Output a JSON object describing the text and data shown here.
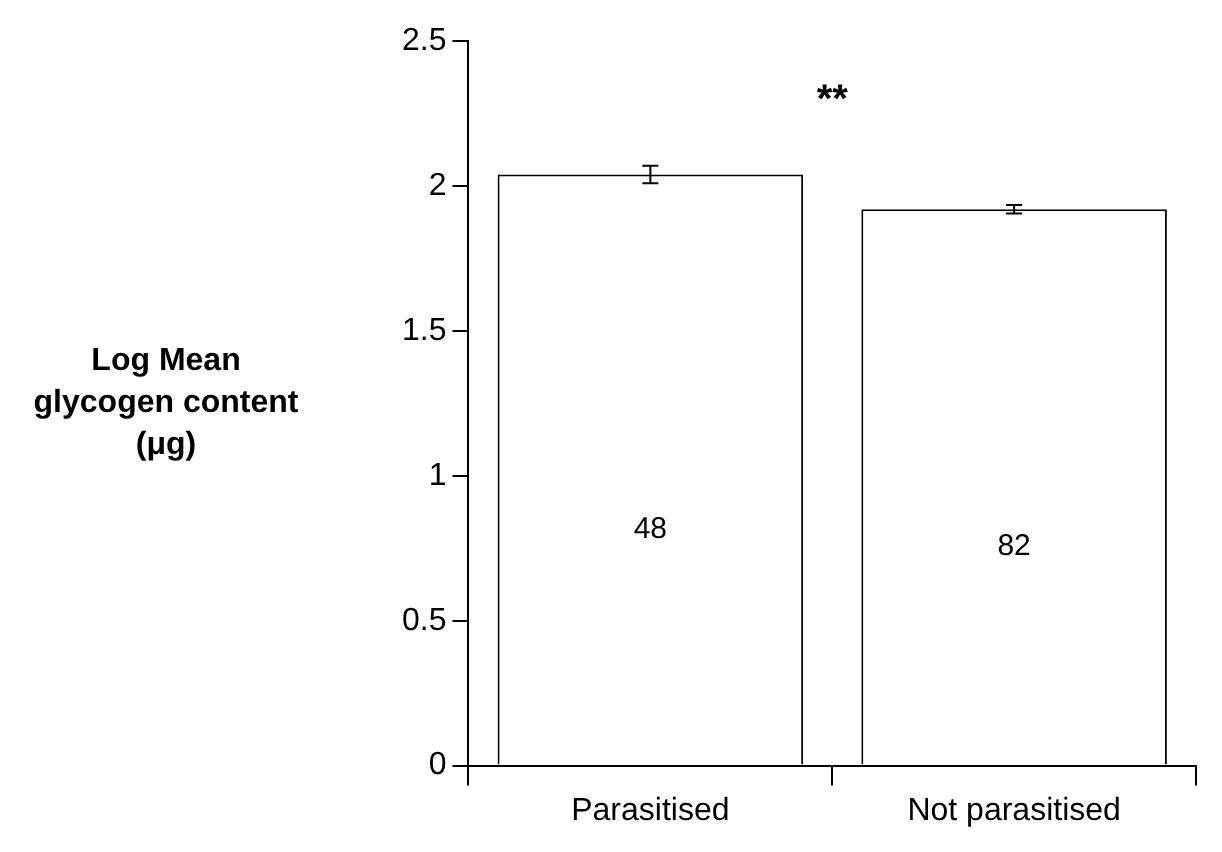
{
  "chart_data": {
    "type": "bar",
    "ylabel": "Log Mean glycogen content (μg)",
    "categories": [
      "Parasitised",
      "Not parasitised"
    ],
    "values": [
      2.04,
      1.92
    ],
    "errors": [
      0.03,
      0.015
    ],
    "color": "#ffffff",
    "ylim": [
      0,
      2.5
    ],
    "yticks": [
      0,
      0.5,
      1,
      1.5,
      2,
      2.5
    ],
    "grid": false,
    "legend": false,
    "annotations": [
      "48",
      "82",
      "**"
    ]
  }
}
